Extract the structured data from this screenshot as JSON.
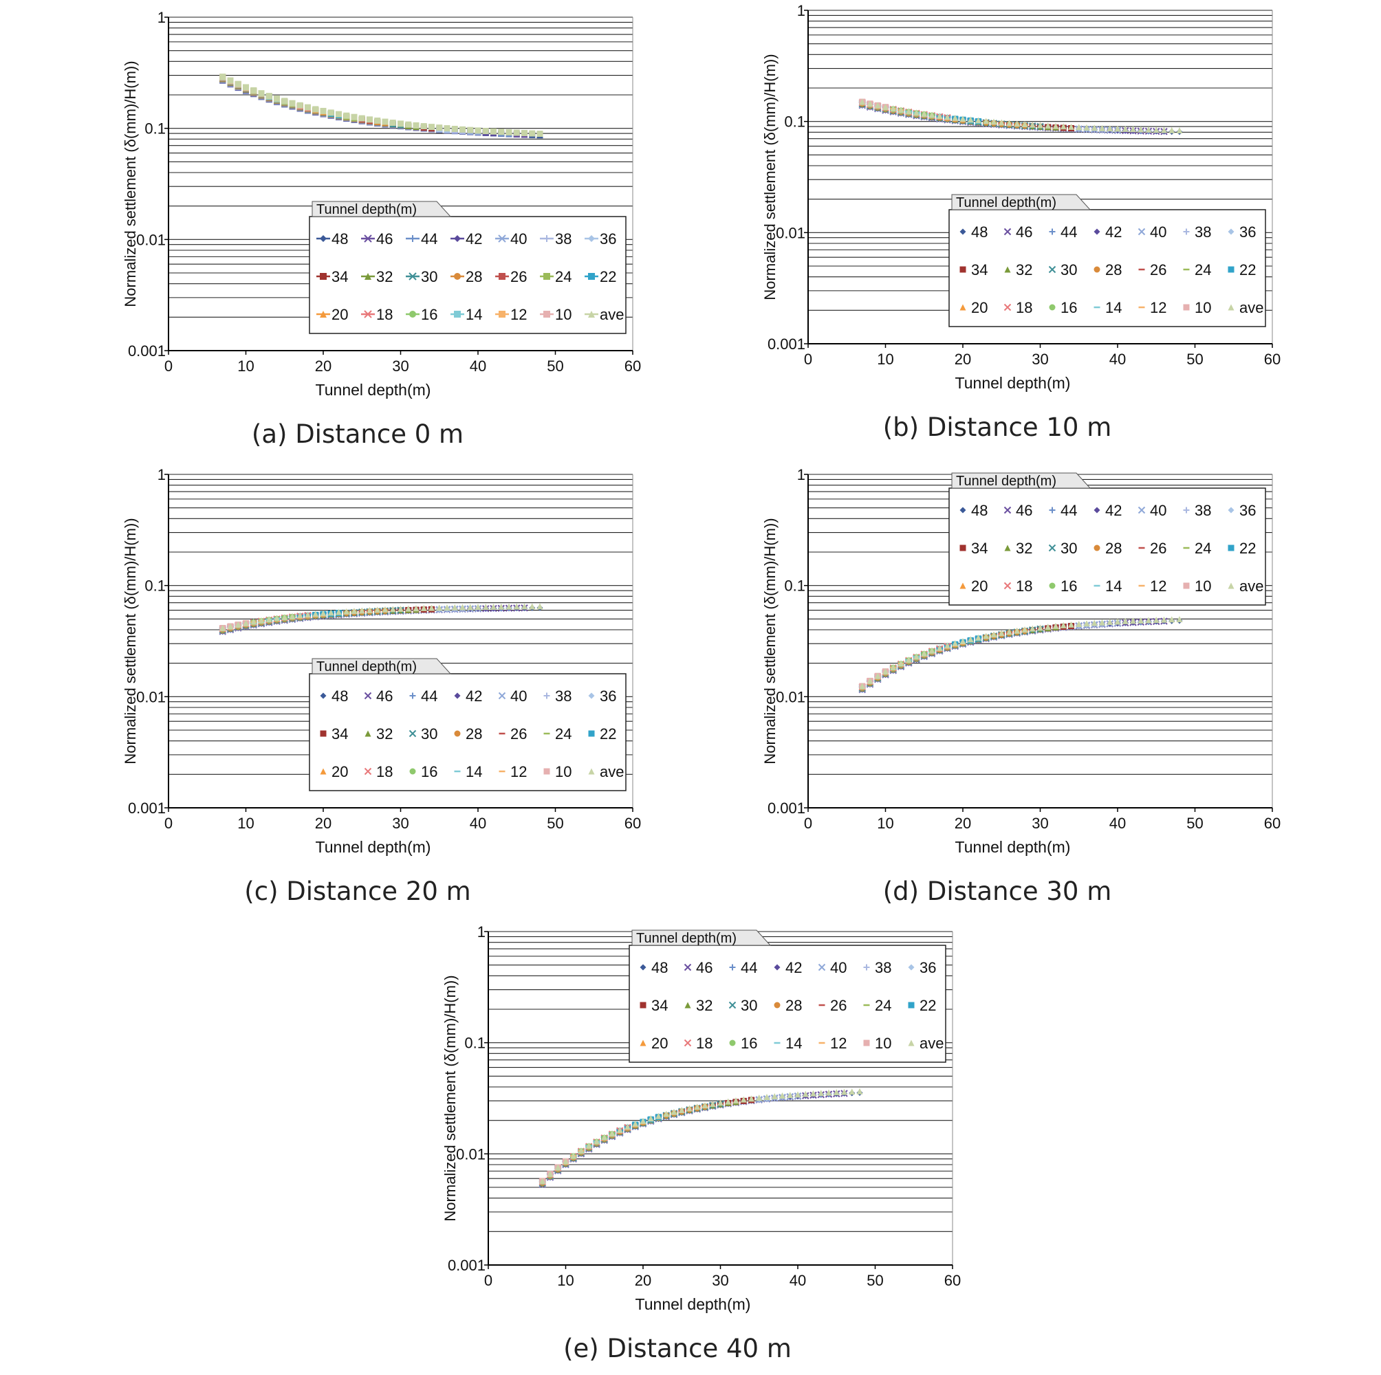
{
  "shared": {
    "xlabel": "Tunnel depth(m)",
    "ylabel": "Normalized settlement (δ(mm)/H(m))",
    "x_ticks": [
      "0",
      "10",
      "20",
      "30",
      "40",
      "50",
      "60"
    ],
    "y_ticks": [
      "0.001",
      "0.01",
      "0.1",
      "1"
    ],
    "legend_title": "Tunnel depth(m)",
    "legend_entries": [
      "48",
      "46",
      "44",
      "42",
      "40",
      "38",
      "36",
      "34",
      "32",
      "30",
      "28",
      "26",
      "24",
      "22",
      "20",
      "18",
      "16",
      "14",
      "12",
      "10",
      "ave"
    ],
    "series_colors": [
      "#3b5998",
      "#6a4fa0",
      "#6b8fc9",
      "#5a4a9c",
      "#8fa8d8",
      "#a9b7e0",
      "#a8c4e6",
      "#a0332f",
      "#7a9a3a",
      "#3f8f96",
      "#d98a3a",
      "#c0504d",
      "#9bbb59",
      "#31a3c9",
      "#f49a3c",
      "#e8787a",
      "#8fc96d",
      "#7fcbd6",
      "#f7b26a",
      "#e6b0b0",
      "#c7d4a6"
    ],
    "series_markers": [
      "diamond",
      "x",
      "plus",
      "diamond",
      "x",
      "plus",
      "diamond",
      "square",
      "triangle",
      "x",
      "circle",
      "dash",
      "dash",
      "square",
      "triangle",
      "x",
      "circle",
      "dash",
      "dash",
      "square",
      "triangle"
    ],
    "axis": {
      "xlim": [
        0,
        60
      ],
      "ylim": [
        0.001,
        1
      ],
      "yscale": "log",
      "grid": "horizontal"
    }
  },
  "chart_data": [
    {
      "id": "a",
      "type": "scatter",
      "caption": "(a) Distance 0 m",
      "legend_style": "line-marker",
      "legend_pos": "lower-right",
      "series_shape": "decreasing",
      "y_at_7": 0.28,
      "y_at_48": 0.088
    },
    {
      "id": "b",
      "type": "scatter",
      "caption": "(b) Distance 10 m",
      "legend_style": "marker",
      "legend_pos": "lower-right",
      "series_shape": "decreasing",
      "y_at_7": 0.145,
      "y_at_48": 0.082
    },
    {
      "id": "c",
      "type": "scatter",
      "caption": "(c) Distance 20 m",
      "legend_style": "marker",
      "legend_pos": "lower-right",
      "series_shape": "rising",
      "y_at_7": 0.04,
      "y_at_48": 0.064
    },
    {
      "id": "d",
      "type": "scatter",
      "caption": "(d) Distance 30 m",
      "legend_style": "marker",
      "legend_pos": "upper-right",
      "series_shape": "rising",
      "y_at_7": 0.012,
      "y_at_48": 0.049
    },
    {
      "id": "e",
      "type": "scatter",
      "caption": "(e) Distance 40 m",
      "legend_style": "marker",
      "legend_pos": "upper-right",
      "series_shape": "rising",
      "y_at_7": 0.0055,
      "y_at_48": 0.036
    }
  ]
}
